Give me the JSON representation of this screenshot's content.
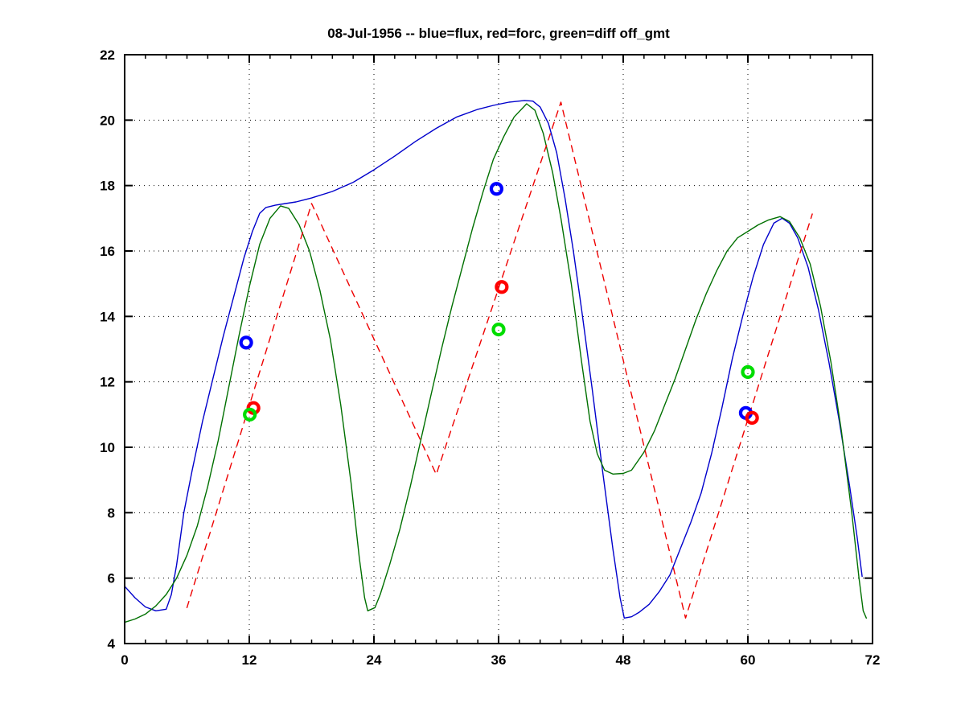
{
  "chart_data": {
    "type": "line",
    "title": "08-Jul-1956 -- blue=flux, red=forc, green=diff off_gmt",
    "xlabel": "",
    "ylabel": "",
    "xlim": [
      0,
      72
    ],
    "ylim": [
      4,
      22
    ],
    "x_ticks": [
      0,
      12,
      24,
      36,
      48,
      60,
      72
    ],
    "x_minor_step": 2,
    "y_ticks": [
      4,
      6,
      8,
      10,
      12,
      14,
      16,
      18,
      20,
      22
    ],
    "grid": "dotted",
    "grid_color": "#000000",
    "axis_color": "#000000",
    "background_color": "#ffffff",
    "legend": [
      {
        "label": "blue=flux",
        "color": "#0000cc"
      },
      {
        "label": "red=forc",
        "color": "#ee0000"
      },
      {
        "label": "green=diff",
        "color": "#007000"
      }
    ],
    "series": [
      {
        "name": "flux",
        "color": "#0000cc",
        "style": "solid",
        "points": [
          [
            0,
            5.75
          ],
          [
            1,
            5.4
          ],
          [
            2,
            5.12
          ],
          [
            3,
            5.0
          ],
          [
            4,
            5.05
          ],
          [
            4.5,
            5.5
          ],
          [
            5,
            6.4
          ],
          [
            5.7,
            8.0
          ],
          [
            6.5,
            9.3
          ],
          [
            7.5,
            10.8
          ],
          [
            8.5,
            12.1
          ],
          [
            9.5,
            13.4
          ],
          [
            10.5,
            14.6
          ],
          [
            11.5,
            15.8
          ],
          [
            12.3,
            16.6
          ],
          [
            13,
            17.15
          ],
          [
            13.6,
            17.33
          ],
          [
            14.5,
            17.4
          ],
          [
            15.5,
            17.45
          ],
          [
            16.5,
            17.5
          ],
          [
            18,
            17.62
          ],
          [
            20,
            17.82
          ],
          [
            22,
            18.1
          ],
          [
            24,
            18.48
          ],
          [
            26,
            18.9
          ],
          [
            28,
            19.35
          ],
          [
            30,
            19.75
          ],
          [
            32,
            20.1
          ],
          [
            34,
            20.33
          ],
          [
            35.5,
            20.45
          ],
          [
            37,
            20.55
          ],
          [
            38.5,
            20.6
          ],
          [
            39.3,
            20.58
          ],
          [
            40,
            20.4
          ],
          [
            40.8,
            19.9
          ],
          [
            41.6,
            19.0
          ],
          [
            42.4,
            17.6
          ],
          [
            43.2,
            16.0
          ],
          [
            44,
            14.2
          ],
          [
            45,
            11.8
          ],
          [
            46,
            9.3
          ],
          [
            47,
            6.9
          ],
          [
            47.7,
            5.4
          ],
          [
            48.1,
            4.78
          ],
          [
            48.8,
            4.82
          ],
          [
            49.5,
            4.95
          ],
          [
            50.5,
            5.2
          ],
          [
            51.5,
            5.6
          ],
          [
            52.5,
            6.1
          ],
          [
            53.5,
            6.9
          ],
          [
            54.5,
            7.7
          ],
          [
            55.5,
            8.6
          ],
          [
            56.5,
            9.8
          ],
          [
            57.5,
            11.2
          ],
          [
            58.5,
            12.7
          ],
          [
            59.5,
            14.0
          ],
          [
            60.5,
            15.2
          ],
          [
            61.5,
            16.2
          ],
          [
            62.5,
            16.85
          ],
          [
            63.3,
            17.0
          ],
          [
            64,
            16.85
          ],
          [
            64.8,
            16.4
          ],
          [
            65.8,
            15.5
          ],
          [
            66.8,
            14.2
          ],
          [
            67.8,
            12.6
          ],
          [
            68.8,
            10.8
          ],
          [
            69.8,
            8.8
          ],
          [
            70.5,
            7.3
          ],
          [
            71,
            6.05
          ]
        ]
      },
      {
        "name": "diff",
        "color": "#007000",
        "style": "solid",
        "points": [
          [
            0,
            4.65
          ],
          [
            1,
            4.75
          ],
          [
            2,
            4.9
          ],
          [
            3,
            5.15
          ],
          [
            4,
            5.5
          ],
          [
            5,
            6.0
          ],
          [
            6,
            6.7
          ],
          [
            7,
            7.6
          ],
          [
            8,
            8.8
          ],
          [
            9,
            10.2
          ],
          [
            10,
            11.8
          ],
          [
            11,
            13.4
          ],
          [
            12,
            14.9
          ],
          [
            13,
            16.2
          ],
          [
            14,
            17.0
          ],
          [
            15,
            17.38
          ],
          [
            15.8,
            17.3
          ],
          [
            16.8,
            16.8
          ],
          [
            17.8,
            16.0
          ],
          [
            18.8,
            14.8
          ],
          [
            19.8,
            13.3
          ],
          [
            20.8,
            11.3
          ],
          [
            21.8,
            8.9
          ],
          [
            22.6,
            6.6
          ],
          [
            23.1,
            5.4
          ],
          [
            23.4,
            5.0
          ],
          [
            24.1,
            5.1
          ],
          [
            24.6,
            5.5
          ],
          [
            25.5,
            6.4
          ],
          [
            26.5,
            7.5
          ],
          [
            27.5,
            8.8
          ],
          [
            28.5,
            10.2
          ],
          [
            29.5,
            11.6
          ],
          [
            30.5,
            13.0
          ],
          [
            31.5,
            14.3
          ],
          [
            32.5,
            15.5
          ],
          [
            33.5,
            16.7
          ],
          [
            34.5,
            17.8
          ],
          [
            35.5,
            18.8
          ],
          [
            36.5,
            19.5
          ],
          [
            37.5,
            20.1
          ],
          [
            38.7,
            20.5
          ],
          [
            39.5,
            20.3
          ],
          [
            40.3,
            19.6
          ],
          [
            41.2,
            18.4
          ],
          [
            42,
            17.0
          ],
          [
            43,
            15.0
          ],
          [
            44,
            12.6
          ],
          [
            44.8,
            10.8
          ],
          [
            45.5,
            9.8
          ],
          [
            46.2,
            9.3
          ],
          [
            47,
            9.18
          ],
          [
            48,
            9.2
          ],
          [
            48.8,
            9.3
          ],
          [
            50,
            9.85
          ],
          [
            51,
            10.5
          ],
          [
            52,
            11.3
          ],
          [
            53,
            12.1
          ],
          [
            54,
            13.0
          ],
          [
            55,
            13.9
          ],
          [
            56,
            14.7
          ],
          [
            57,
            15.4
          ],
          [
            58,
            16.0
          ],
          [
            59,
            16.4
          ],
          [
            60,
            16.6
          ],
          [
            61,
            16.8
          ],
          [
            62,
            16.95
          ],
          [
            63.1,
            17.05
          ],
          [
            64,
            16.9
          ],
          [
            65,
            16.4
          ],
          [
            66,
            15.6
          ],
          [
            67,
            14.3
          ],
          [
            68,
            12.6
          ],
          [
            69,
            10.5
          ],
          [
            70,
            8.0
          ],
          [
            70.7,
            6.0
          ],
          [
            71.1,
            5.0
          ],
          [
            71.4,
            4.78
          ]
        ]
      },
      {
        "name": "forc",
        "color": "#ee0000",
        "style": "dashed",
        "points": [
          [
            6,
            5.1
          ],
          [
            18,
            17.45
          ],
          [
            30,
            9.17
          ],
          [
            42,
            20.55
          ],
          [
            54,
            4.78
          ],
          [
            66.2,
            17.13
          ]
        ]
      }
    ],
    "markers": [
      {
        "name": "flux-obs",
        "color": "#0000ff",
        "points": [
          [
            11.7,
            13.2
          ],
          [
            35.8,
            17.9
          ],
          [
            59.8,
            11.05
          ]
        ]
      },
      {
        "name": "forc-obs",
        "color": "#ff0000",
        "points": [
          [
            12.4,
            11.2
          ],
          [
            36.3,
            14.9
          ],
          [
            60.4,
            10.9
          ]
        ]
      },
      {
        "name": "diff-obs",
        "color": "#00dd00",
        "points": [
          [
            12.05,
            11.0
          ],
          [
            36.0,
            13.6
          ],
          [
            60.0,
            12.3
          ]
        ]
      }
    ]
  }
}
